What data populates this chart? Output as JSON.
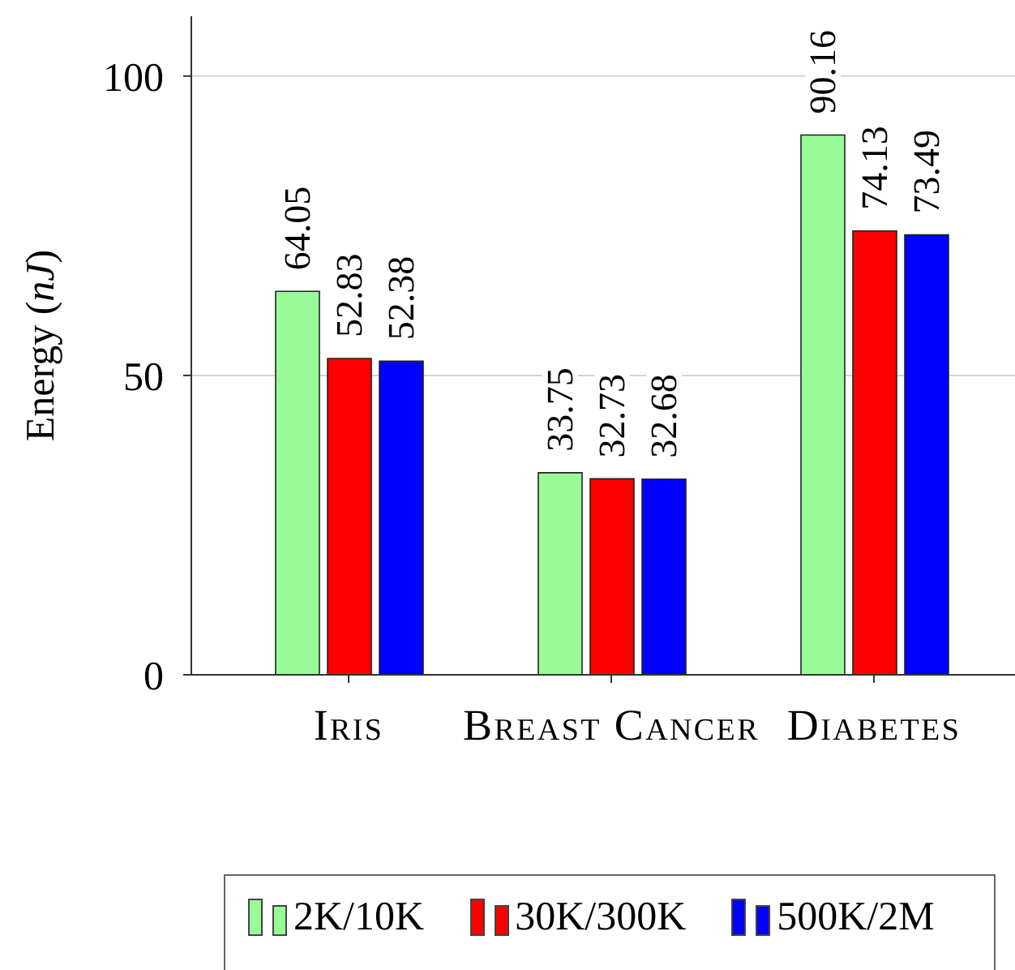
{
  "chart_data": {
    "type": "bar",
    "ylabel": "Energy (nJ)",
    "categories": [
      "Iris",
      "Breast Cancer",
      "Diabetes"
    ],
    "series": [
      {
        "name": "2K/10K",
        "color": "#98fb98",
        "values": [
          64.05,
          33.75,
          90.16
        ]
      },
      {
        "name": "30K/300K",
        "color": "#ff0000",
        "values": [
          52.83,
          32.73,
          74.13
        ]
      },
      {
        "name": "500K/2M",
        "color": "#0000ff",
        "values": [
          52.38,
          32.68,
          73.49
        ]
      }
    ],
    "ylim": [
      0,
      110
    ],
    "yticks": [
      0,
      50,
      100
    ],
    "grid": "y",
    "legend": "bottom",
    "data_labels": true
  }
}
